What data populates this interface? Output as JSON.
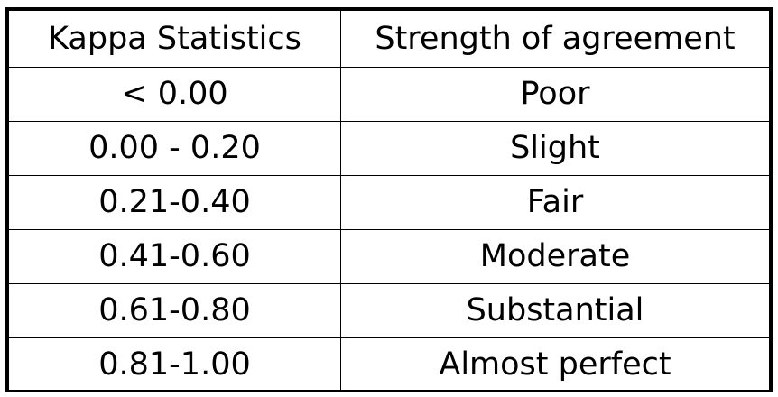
{
  "table": {
    "headers": [
      "Kappa Statistics",
      "Strength of agreement"
    ],
    "rows": [
      [
        "< 0.00",
        "Poor"
      ],
      [
        "0.00 - 0.20",
        "Slight"
      ],
      [
        "0.21-0.40",
        "Fair"
      ],
      [
        "0.41-0.60",
        "Moderate"
      ],
      [
        "0.61-0.80",
        "Substantial"
      ],
      [
        "0.81-1.00",
        "Almost perfect"
      ]
    ]
  },
  "colors": {
    "border": "#000000",
    "text": "#000000",
    "background": "#ffffff"
  }
}
